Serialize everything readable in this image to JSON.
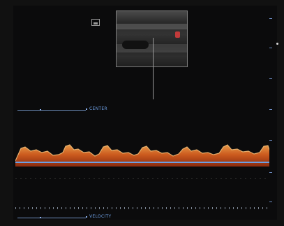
{
  "labels": {
    "top": "CENTER",
    "bottom": "VELOCITY"
  },
  "colors": {
    "background": "#111111",
    "doppler": "#e06a22",
    "baseline": "#6aa0e6",
    "label": "#6fa2e8"
  },
  "icons": {
    "probe": "probe-marker-icon"
  }
}
